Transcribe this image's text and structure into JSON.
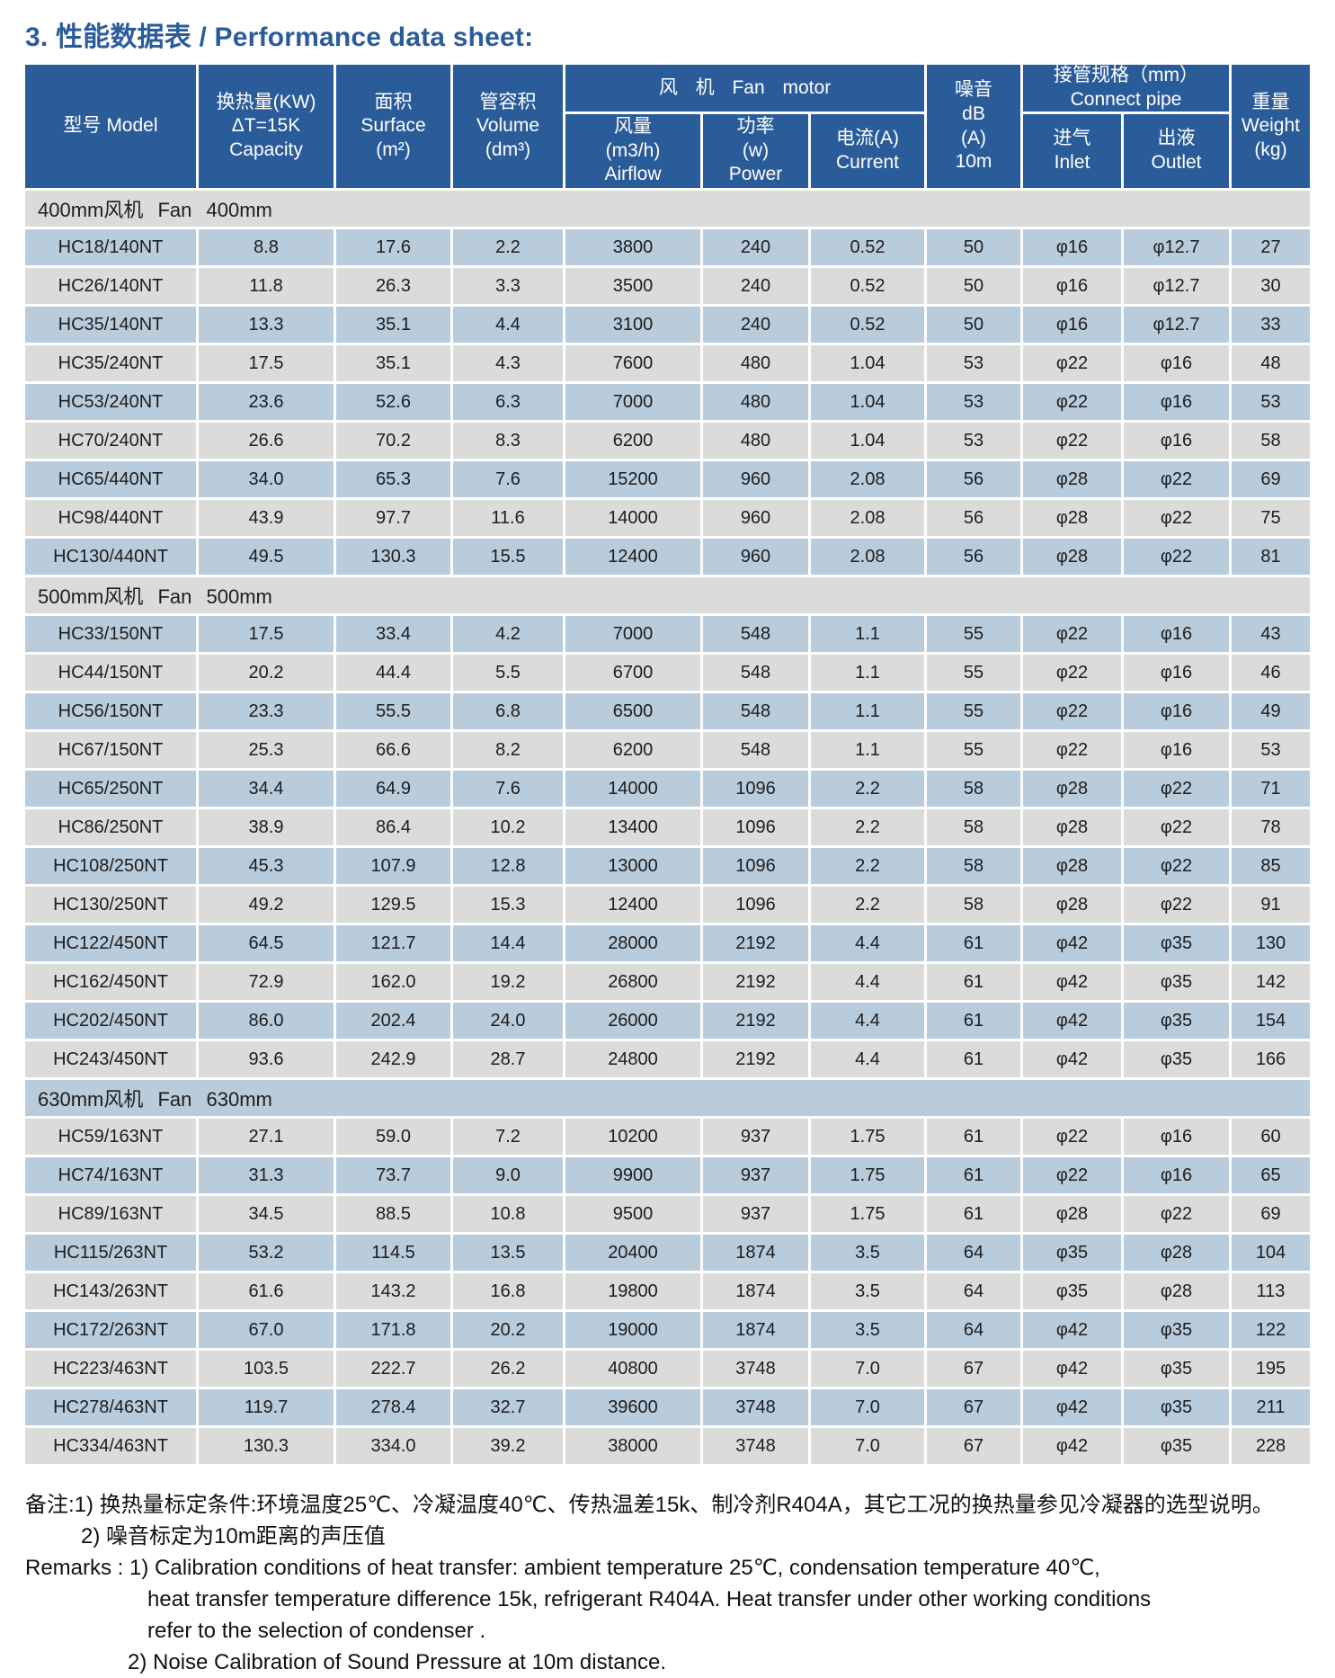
{
  "page_title": "3. 性能数据表 / Performance data sheet:",
  "colors": {
    "header_blue": "#2b5c9a",
    "row_light_blue": "#b9ccdb",
    "row_gray": "#dbdbd9",
    "grid_line": "#ffffff",
    "title_blue": "#2b5c9a"
  },
  "table": {
    "header": {
      "model": "型号 Model",
      "capacity": "换热量(KW)\nΔT=15K\nCapacity",
      "surface": "面积\nSurface\n(m²)",
      "volume": "管容积\nVolume\n(dm³)",
      "fan_group": "风 机 Fan motor",
      "airflow": "风量\n(m3/h)\nAirflow",
      "power": "功率\n(w)\nPower",
      "current": "电流(A)\nCurrent",
      "noise": "噪音\ndB\n(A)\n10m",
      "pipe_group": "接管规格（mm）\nConnect pipe",
      "inlet": "进气\nInlet",
      "outlet": "出液\nOutlet",
      "weight": "重量\nWeight\n(kg)"
    },
    "column_keys": [
      "model",
      "capacity",
      "surface",
      "volume",
      "airflow",
      "power",
      "current",
      "noise",
      "inlet",
      "outlet",
      "weight"
    ],
    "sections": [
      {
        "label": "400mm风机 Fan 400mm",
        "rows": [
          [
            "HC18/140NT",
            "8.8",
            "17.6",
            "2.2",
            "3800",
            "240",
            "0.52",
            "50",
            "φ16",
            "φ12.7",
            "27"
          ],
          [
            "HC26/140NT",
            "11.8",
            "26.3",
            "3.3",
            "3500",
            "240",
            "0.52",
            "50",
            "φ16",
            "φ12.7",
            "30"
          ],
          [
            "HC35/140NT",
            "13.3",
            "35.1",
            "4.4",
            "3100",
            "240",
            "0.52",
            "50",
            "φ16",
            "φ12.7",
            "33"
          ],
          [
            "HC35/240NT",
            "17.5",
            "35.1",
            "4.3",
            "7600",
            "480",
            "1.04",
            "53",
            "φ22",
            "φ16",
            "48"
          ],
          [
            "HC53/240NT",
            "23.6",
            "52.6",
            "6.3",
            "7000",
            "480",
            "1.04",
            "53",
            "φ22",
            "φ16",
            "53"
          ],
          [
            "HC70/240NT",
            "26.6",
            "70.2",
            "8.3",
            "6200",
            "480",
            "1.04",
            "53",
            "φ22",
            "φ16",
            "58"
          ],
          [
            "HC65/440NT",
            "34.0",
            "65.3",
            "7.6",
            "15200",
            "960",
            "2.08",
            "56",
            "φ28",
            "φ22",
            "69"
          ],
          [
            "HC98/440NT",
            "43.9",
            "97.7",
            "11.6",
            "14000",
            "960",
            "2.08",
            "56",
            "φ28",
            "φ22",
            "75"
          ],
          [
            "HC130/440NT",
            "49.5",
            "130.3",
            "15.5",
            "12400",
            "960",
            "2.08",
            "56",
            "φ28",
            "φ22",
            "81"
          ]
        ]
      },
      {
        "label": "500mm风机 Fan 500mm",
        "rows": [
          [
            "HC33/150NT",
            "17.5",
            "33.4",
            "4.2",
            "7000",
            "548",
            "1.1",
            "55",
            "φ22",
            "φ16",
            "43"
          ],
          [
            "HC44/150NT",
            "20.2",
            "44.4",
            "5.5",
            "6700",
            "548",
            "1.1",
            "55",
            "φ22",
            "φ16",
            "46"
          ],
          [
            "HC56/150NT",
            "23.3",
            "55.5",
            "6.8",
            "6500",
            "548",
            "1.1",
            "55",
            "φ22",
            "φ16",
            "49"
          ],
          [
            "HC67/150NT",
            "25.3",
            "66.6",
            "8.2",
            "6200",
            "548",
            "1.1",
            "55",
            "φ22",
            "φ16",
            "53"
          ],
          [
            "HC65/250NT",
            "34.4",
            "64.9",
            "7.6",
            "14000",
            "1096",
            "2.2",
            "58",
            "φ28",
            "φ22",
            "71"
          ],
          [
            "HC86/250NT",
            "38.9",
            "86.4",
            "10.2",
            "13400",
            "1096",
            "2.2",
            "58",
            "φ28",
            "φ22",
            "78"
          ],
          [
            "HC108/250NT",
            "45.3",
            "107.9",
            "12.8",
            "13000",
            "1096",
            "2.2",
            "58",
            "φ28",
            "φ22",
            "85"
          ],
          [
            "HC130/250NT",
            "49.2",
            "129.5",
            "15.3",
            "12400",
            "1096",
            "2.2",
            "58",
            "φ28",
            "φ22",
            "91"
          ],
          [
            "HC122/450NT",
            "64.5",
            "121.7",
            "14.4",
            "28000",
            "2192",
            "4.4",
            "61",
            "φ42",
            "φ35",
            "130"
          ],
          [
            "HC162/450NT",
            "72.9",
            "162.0",
            "19.2",
            "26800",
            "2192",
            "4.4",
            "61",
            "φ42",
            "φ35",
            "142"
          ],
          [
            "HC202/450NT",
            "86.0",
            "202.4",
            "24.0",
            "26000",
            "2192",
            "4.4",
            "61",
            "φ42",
            "φ35",
            "154"
          ],
          [
            "HC243/450NT",
            "93.6",
            "242.9",
            "28.7",
            "24800",
            "2192",
            "4.4",
            "61",
            "φ42",
            "φ35",
            "166"
          ]
        ]
      },
      {
        "label": "630mm风机 Fan 630mm",
        "rows": [
          [
            "HC59/163NT",
            "27.1",
            "59.0",
            "7.2",
            "10200",
            "937",
            "1.75",
            "61",
            "φ22",
            "φ16",
            "60"
          ],
          [
            "HC74/163NT",
            "31.3",
            "73.7",
            "9.0",
            "9900",
            "937",
            "1.75",
            "61",
            "φ22",
            "φ16",
            "65"
          ],
          [
            "HC89/163NT",
            "34.5",
            "88.5",
            "10.8",
            "9500",
            "937",
            "1.75",
            "61",
            "φ28",
            "φ22",
            "69"
          ],
          [
            "HC115/263NT",
            "53.2",
            "114.5",
            "13.5",
            "20400",
            "1874",
            "3.5",
            "64",
            "φ35",
            "φ28",
            "104"
          ],
          [
            "HC143/263NT",
            "61.6",
            "143.2",
            "16.8",
            "19800",
            "1874",
            "3.5",
            "64",
            "φ35",
            "φ28",
            "113"
          ],
          [
            "HC172/263NT",
            "67.0",
            "171.8",
            "20.2",
            "19000",
            "1874",
            "3.5",
            "64",
            "φ42",
            "φ35",
            "122"
          ],
          [
            "HC223/463NT",
            "103.5",
            "222.7",
            "26.2",
            "40800",
            "3748",
            "7.0",
            "67",
            "φ42",
            "φ35",
            "195"
          ],
          [
            "HC278/463NT",
            "119.7",
            "278.4",
            "32.7",
            "39600",
            "3748",
            "7.0",
            "67",
            "φ42",
            "φ35",
            "211"
          ],
          [
            "HC334/463NT",
            "130.3",
            "334.0",
            "39.2",
            "38000",
            "3748",
            "7.0",
            "67",
            "φ42",
            "φ35",
            "228"
          ]
        ]
      }
    ]
  },
  "remarks": {
    "zh_line1": "备注:1) 换热量标定条件:环境温度25℃、冷凝温度40℃、传热温差15k、制冷剂R404A，其它工况的换热量参见冷凝器的选型说明。",
    "zh_line2": "2) 噪音标定为10m距离的声压值",
    "en_line1": "Remarks : 1) Calibration conditions of heat transfer: ambient temperature 25℃, condensation temperature 40℃,",
    "en_line2": "heat transfer temperature difference 15k, refrigerant R404A. Heat transfer under other working conditions",
    "en_line3": "refer to the selection of condenser .",
    "en_line4": "2) Noise Calibration of Sound Pressure at 10m distance."
  }
}
